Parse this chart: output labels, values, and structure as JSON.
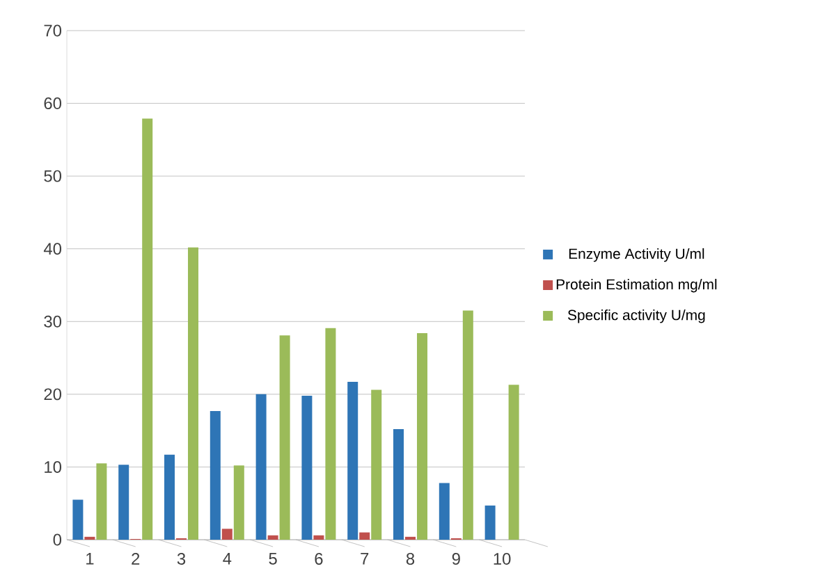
{
  "chart_data": {
    "type": "bar",
    "categories": [
      "1",
      "2",
      "3",
      "4",
      "5",
      "6",
      "7",
      "8",
      "9",
      "10"
    ],
    "series": [
      {
        "name": "Enzyme Activity U/ml",
        "color": "#2e75b6",
        "values": [
          5.5,
          10.3,
          11.7,
          17.7,
          20.0,
          19.8,
          21.7,
          15.2,
          7.8,
          4.7
        ]
      },
      {
        "name": "Protein Estimation mg/ml",
        "color": "#c0504d",
        "values": [
          0.4,
          0.1,
          0.2,
          1.5,
          0.6,
          0.6,
          1.0,
          0.4,
          0.2,
          0
        ]
      },
      {
        "name": "Specific activity U/mg",
        "color": "#9bbb59",
        "values": [
          10.5,
          57.9,
          40.2,
          10.2,
          28.1,
          29.1,
          20.6,
          28.4,
          31.5,
          21.3
        ]
      }
    ],
    "ylim": [
      0,
      70
    ],
    "yticks": [
      0,
      10,
      20,
      30,
      40,
      50,
      60,
      70
    ],
    "grid": "y",
    "legend": "right"
  }
}
